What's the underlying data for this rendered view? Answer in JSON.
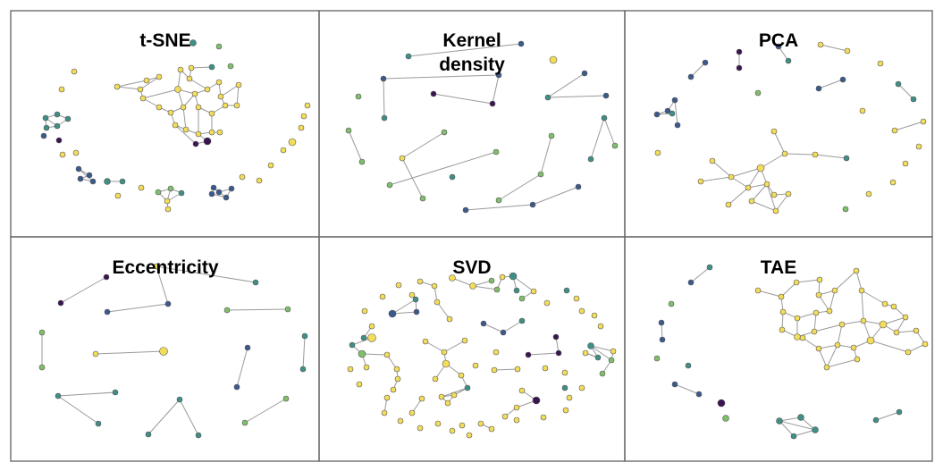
{
  "panels": [
    {
      "title": "t-SNE"
    },
    {
      "title": "Kernel\ndensity"
    },
    {
      "title": "PCA"
    },
    {
      "title": "Eccentricity"
    },
    {
      "title": "SVD"
    },
    {
      "title": "TAE"
    }
  ],
  "colors": {
    "yellow": "#f2dd5a",
    "light_green": "#7fbf6a",
    "teal": "#3f8f86",
    "blue": "#3b5a8c",
    "dark_purple": "#3a1552"
  }
}
